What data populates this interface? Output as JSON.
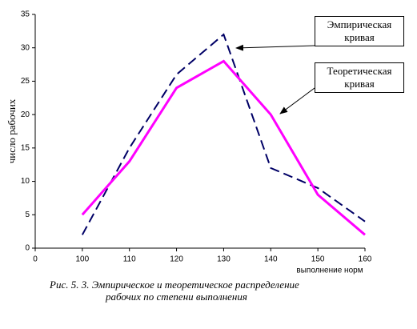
{
  "chart_data": {
    "type": "line",
    "x_label": "выполнение норм",
    "y_label": "число рабочих",
    "caption": [
      "Рис. 5. 3. Эмпирическое и теоретическое распределение",
      "рабочих по степени выполнения"
    ],
    "categories": [
      "0",
      "100",
      "110",
      "120",
      "130",
      "140",
      "150",
      "160"
    ],
    "series": [
      {
        "name": "Эмпирическая кривая",
        "color": "#000066",
        "dashed": true,
        "values": [
          null,
          2,
          15,
          26,
          32,
          12,
          9,
          4
        ]
      },
      {
        "name": "Теоретическая кривая",
        "color": "#ff00ff",
        "dashed": false,
        "values": [
          null,
          5,
          13,
          24,
          28,
          20,
          8,
          2
        ]
      }
    ],
    "ylim": [
      0,
      35
    ],
    "yticks": [
      0,
      5,
      10,
      15,
      20,
      25,
      30,
      35
    ]
  }
}
